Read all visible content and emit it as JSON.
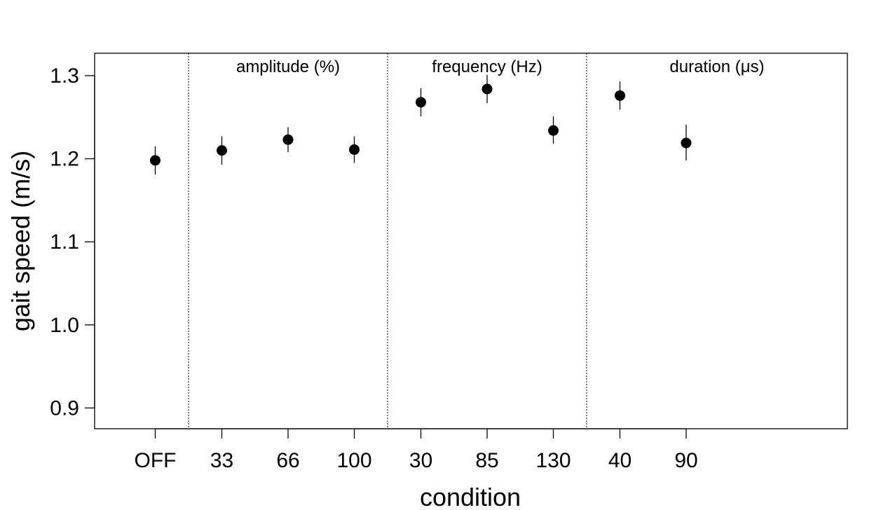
{
  "chart_data": {
    "type": "scatter",
    "xlabel": "condition",
    "ylabel": "gait speed (m/s)",
    "ylim": [
      0.875,
      1.327
    ],
    "yticks": [
      "0.9",
      "1.0",
      "1.1",
      "1.2",
      "1.3"
    ],
    "grid": false,
    "legend": "none",
    "groups": [
      {
        "label": "",
        "categories": [
          "OFF"
        ]
      },
      {
        "label": "amplitude (%)",
        "categories": [
          "33",
          "66",
          "100"
        ]
      },
      {
        "label": "frequency (Hz)",
        "categories": [
          "30",
          "85",
          "130"
        ]
      },
      {
        "label": "duration (μs)",
        "categories": [
          "40",
          "90"
        ]
      }
    ],
    "points": [
      {
        "category": "OFF",
        "y": 1.198,
        "lo": 1.181,
        "hi": 1.215
      },
      {
        "category": "33",
        "y": 1.21,
        "lo": 1.193,
        "hi": 1.227
      },
      {
        "category": "66",
        "y": 1.223,
        "lo": 1.208,
        "hi": 1.238
      },
      {
        "category": "100",
        "y": 1.211,
        "lo": 1.195,
        "hi": 1.227
      },
      {
        "category": "30",
        "y": 1.268,
        "lo": 1.251,
        "hi": 1.285
      },
      {
        "category": "85",
        "y": 1.284,
        "lo": 1.267,
        "hi": 1.301
      },
      {
        "category": "130",
        "y": 1.234,
        "lo": 1.218,
        "hi": 1.251
      },
      {
        "category": "40",
        "y": 1.276,
        "lo": 1.259,
        "hi": 1.293
      },
      {
        "category": "90",
        "y": 1.219,
        "lo": 1.198,
        "hi": 1.241
      }
    ],
    "marker_color": "#000000",
    "divider_style": "dotted"
  }
}
